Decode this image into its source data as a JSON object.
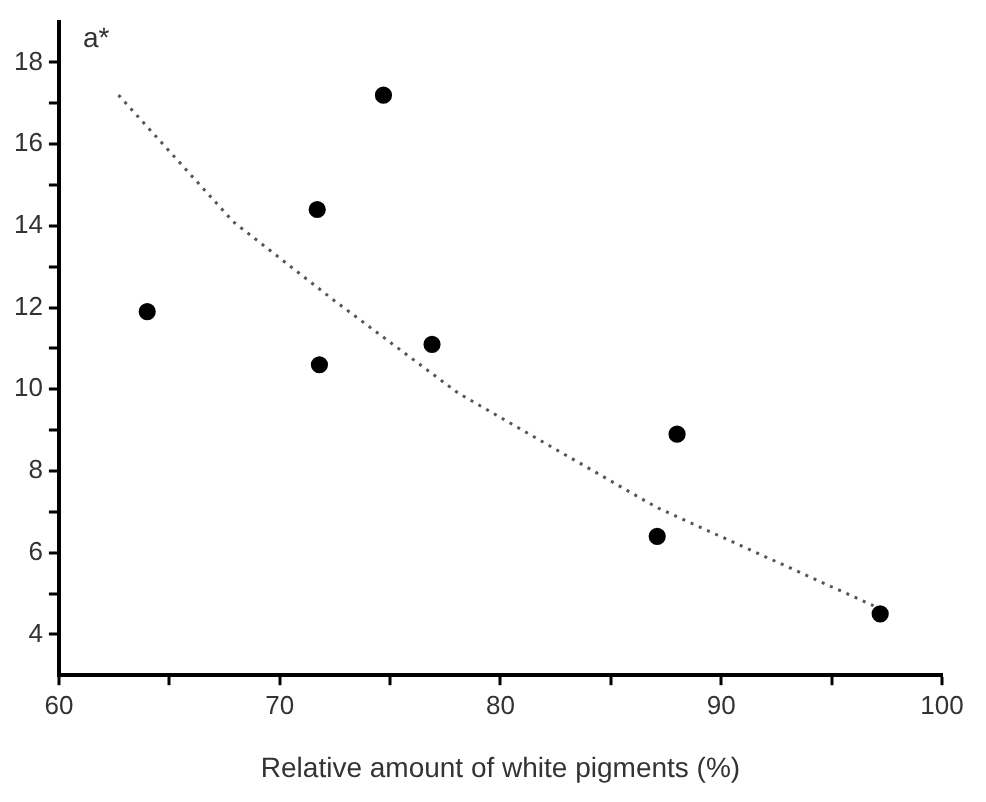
{
  "chart_data": {
    "type": "scatter",
    "xlabel": "Relative amount of white pigments (%)",
    "ylabel": "a*",
    "xlim": [
      60,
      100
    ],
    "ylim": [
      3,
      19
    ],
    "xticks": [
      60,
      {
        "value": 65,
        "label": null
      },
      70,
      {
        "value": 75,
        "label": null
      },
      80,
      {
        "value": 85,
        "label": null
      },
      90,
      {
        "value": 95,
        "label": null
      },
      100
    ],
    "yticks": [
      4,
      {
        "value": 5,
        "label": null
      },
      6,
      {
        "value": 7,
        "label": null
      },
      8,
      {
        "value": 9,
        "label": null
      },
      10,
      {
        "value": 11,
        "label": null
      },
      12,
      {
        "value": 13,
        "label": null
      },
      14,
      {
        "value": 15,
        "label": null
      },
      16,
      {
        "value": 17,
        "label": null
      },
      18
    ],
    "grid": false,
    "legend": false,
    "series": [
      {
        "color": "#000000",
        "marker": "circle",
        "x": [
          64,
          71.7,
          74.7,
          71.8,
          76.9,
          88.0,
          87.1,
          97.2
        ],
        "values": [
          11.9,
          14.4,
          17.2,
          10.6,
          11.1,
          8.9,
          6.4,
          4.5
        ]
      },
      {
        "type": "line",
        "color": "#555555",
        "marker": "none",
        "line_style": "dotted",
        "x": [
          62.7,
          67.9,
          72.4,
          78.1,
          87.1,
          96.9
        ],
        "values": [
          17.2,
          14.1,
          12.2,
          9.9,
          7.1,
          4.7
        ]
      }
    ]
  }
}
